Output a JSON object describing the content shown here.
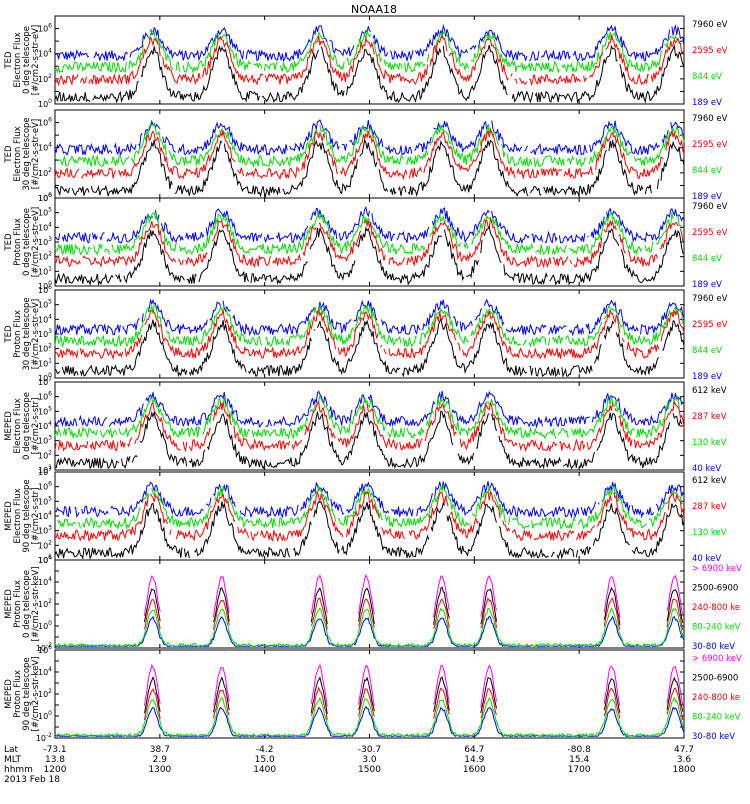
{
  "figure": {
    "title": "NOAA18",
    "footer": {
      "row_labels": [
        "Lat",
        "MLT",
        "hhmm",
        "2013 Feb 18"
      ],
      "columns": [
        {
          "lat": "-73.1",
          "mlt": "13.8",
          "hhmm": "1200"
        },
        {
          "lat": "38.7",
          "mlt": "2.9",
          "hhmm": "1300"
        },
        {
          "lat": "-4.2",
          "mlt": "15.0",
          "hhmm": "1400"
        },
        {
          "lat": "-30.7",
          "mlt": "3.0",
          "hhmm": "1500"
        },
        {
          "lat": "64.7",
          "mlt": "14.9",
          "hhmm": "1600"
        },
        {
          "lat": "-80.8",
          "mlt": "15.4",
          "hhmm": "1700"
        },
        {
          "lat": "47.7",
          "mlt": "3.6",
          "hhmm": "1800"
        }
      ]
    }
  },
  "chart_data": [
    {
      "type": "line",
      "ylabel": [
        "TED",
        "Electron Flux",
        "0 deg telescope",
        "[#/cm2-s-str-eV]"
      ],
      "ylim_exp": [
        0,
        7
      ],
      "x": [
        "1200",
        "1300",
        "1400",
        "1500",
        "1600",
        "1700",
        "1800"
      ],
      "series": [
        {
          "name": "7960 eV",
          "color": "#000000"
        },
        {
          "name": "2595 eV",
          "color": "#ff0000"
        },
        {
          "name": "844 eV",
          "color": "#00dd00"
        },
        {
          "name": "189 eV",
          "color": "#0000ff"
        }
      ]
    },
    {
      "type": "line",
      "ylabel": [
        "TED",
        "Electron Flux",
        "30 deg telescope",
        "[#/cm2-s-str-eV]"
      ],
      "ylim_exp": [
        0,
        7
      ],
      "x": [
        "1200",
        "1300",
        "1400",
        "1500",
        "1600",
        "1700",
        "1800"
      ],
      "series": [
        {
          "name": "7960 eV",
          "color": "#000000"
        },
        {
          "name": "2595 eV",
          "color": "#ff0000"
        },
        {
          "name": "844 eV",
          "color": "#00dd00"
        },
        {
          "name": "189 eV",
          "color": "#0000ff"
        }
      ]
    },
    {
      "type": "line",
      "ylabel": [
        "TED",
        "Proton Flux",
        "0 deg telescope",
        "[#/cm2-s-str-eV]"
      ],
      "ylim_exp": [
        0,
        6
      ],
      "x": [
        "1200",
        "1300",
        "1400",
        "1500",
        "1600",
        "1700",
        "1800"
      ],
      "series": [
        {
          "name": "7960 eV",
          "color": "#000000"
        },
        {
          "name": "2595 eV",
          "color": "#ff0000"
        },
        {
          "name": "844 eV",
          "color": "#00dd00"
        },
        {
          "name": "189 eV",
          "color": "#0000ff"
        }
      ]
    },
    {
      "type": "line",
      "ylabel": [
        "TED",
        "Proton Flux",
        "30 deg telescope",
        "[#/cm2-s-str-eV]"
      ],
      "ylim_exp": [
        0,
        6
      ],
      "x": [
        "1200",
        "1300",
        "1400",
        "1500",
        "1600",
        "1700",
        "1800"
      ],
      "series": [
        {
          "name": "7960 eV",
          "color": "#000000"
        },
        {
          "name": "2595 eV",
          "color": "#ff0000"
        },
        {
          "name": "844 eV",
          "color": "#00dd00"
        },
        {
          "name": "189 eV",
          "color": "#0000ff"
        }
      ]
    },
    {
      "type": "line",
      "ylabel": [
        "MEPED",
        "Electron Flux",
        "0 deg telescope",
        "[#/cm2-s-str]"
      ],
      "ylim_exp": [
        1,
        7
      ],
      "x": [
        "1200",
        "1300",
        "1400",
        "1500",
        "1600",
        "1700",
        "1800"
      ],
      "series": [
        {
          "name": "612 keV",
          "color": "#000000"
        },
        {
          "name": "287 keV",
          "color": "#ff0000"
        },
        {
          "name": "130 keV",
          "color": "#00dd00"
        },
        {
          "name": "40 keV",
          "color": "#0000ff"
        }
      ]
    },
    {
      "type": "line",
      "ylabel": [
        "MEPED",
        "Electron Flux",
        "90 deg telescope",
        "[#/cm2-s-str]"
      ],
      "ylim_exp": [
        1,
        7
      ],
      "x": [
        "1200",
        "1300",
        "1400",
        "1500",
        "1600",
        "1700",
        "1800"
      ],
      "series": [
        {
          "name": "612 keV",
          "color": "#000000"
        },
        {
          "name": "287 keV",
          "color": "#ff0000"
        },
        {
          "name": "130 keV",
          "color": "#00dd00"
        },
        {
          "name": "40 keV",
          "color": "#0000ff"
        }
      ]
    },
    {
      "type": "line",
      "ylabel": [
        "MEPED",
        "Proton Flux",
        "0 deg telescope",
        "[#/cm2-s-str-keV]"
      ],
      "ylim_exp": [
        -2,
        6
      ],
      "x": [
        "1200",
        "1300",
        "1400",
        "1500",
        "1600",
        "1700",
        "1800"
      ],
      "series": [
        {
          "name": "> 6900 keV",
          "color": "#ff00ff"
        },
        {
          "name": "2500-6900",
          "color": "#000000"
        },
        {
          "name": "240-800 ke",
          "color": "#ff0000"
        },
        {
          "name": "80-240 keV",
          "color": "#00dd00"
        },
        {
          "name": "30-80 keV",
          "color": "#0000ff"
        }
      ]
    },
    {
      "type": "line",
      "ylabel": [
        "MEPED",
        "Proton Flux",
        "90 deg telescope",
        "[#/cm2-s-str-keV]"
      ],
      "ylim_exp": [
        -2,
        6
      ],
      "x": [
        "1200",
        "1300",
        "1400",
        "1500",
        "1600",
        "1700",
        "1800"
      ],
      "series": [
        {
          "name": "> 6900 keV",
          "color": "#ff00ff"
        },
        {
          "name": "2500-6900",
          "color": "#000000"
        },
        {
          "name": "240-800 ke",
          "color": "#ff0000"
        },
        {
          "name": "80-240 keV",
          "color": "#00dd00"
        },
        {
          "name": "30-80 keV",
          "color": "#0000ff"
        }
      ]
    }
  ]
}
